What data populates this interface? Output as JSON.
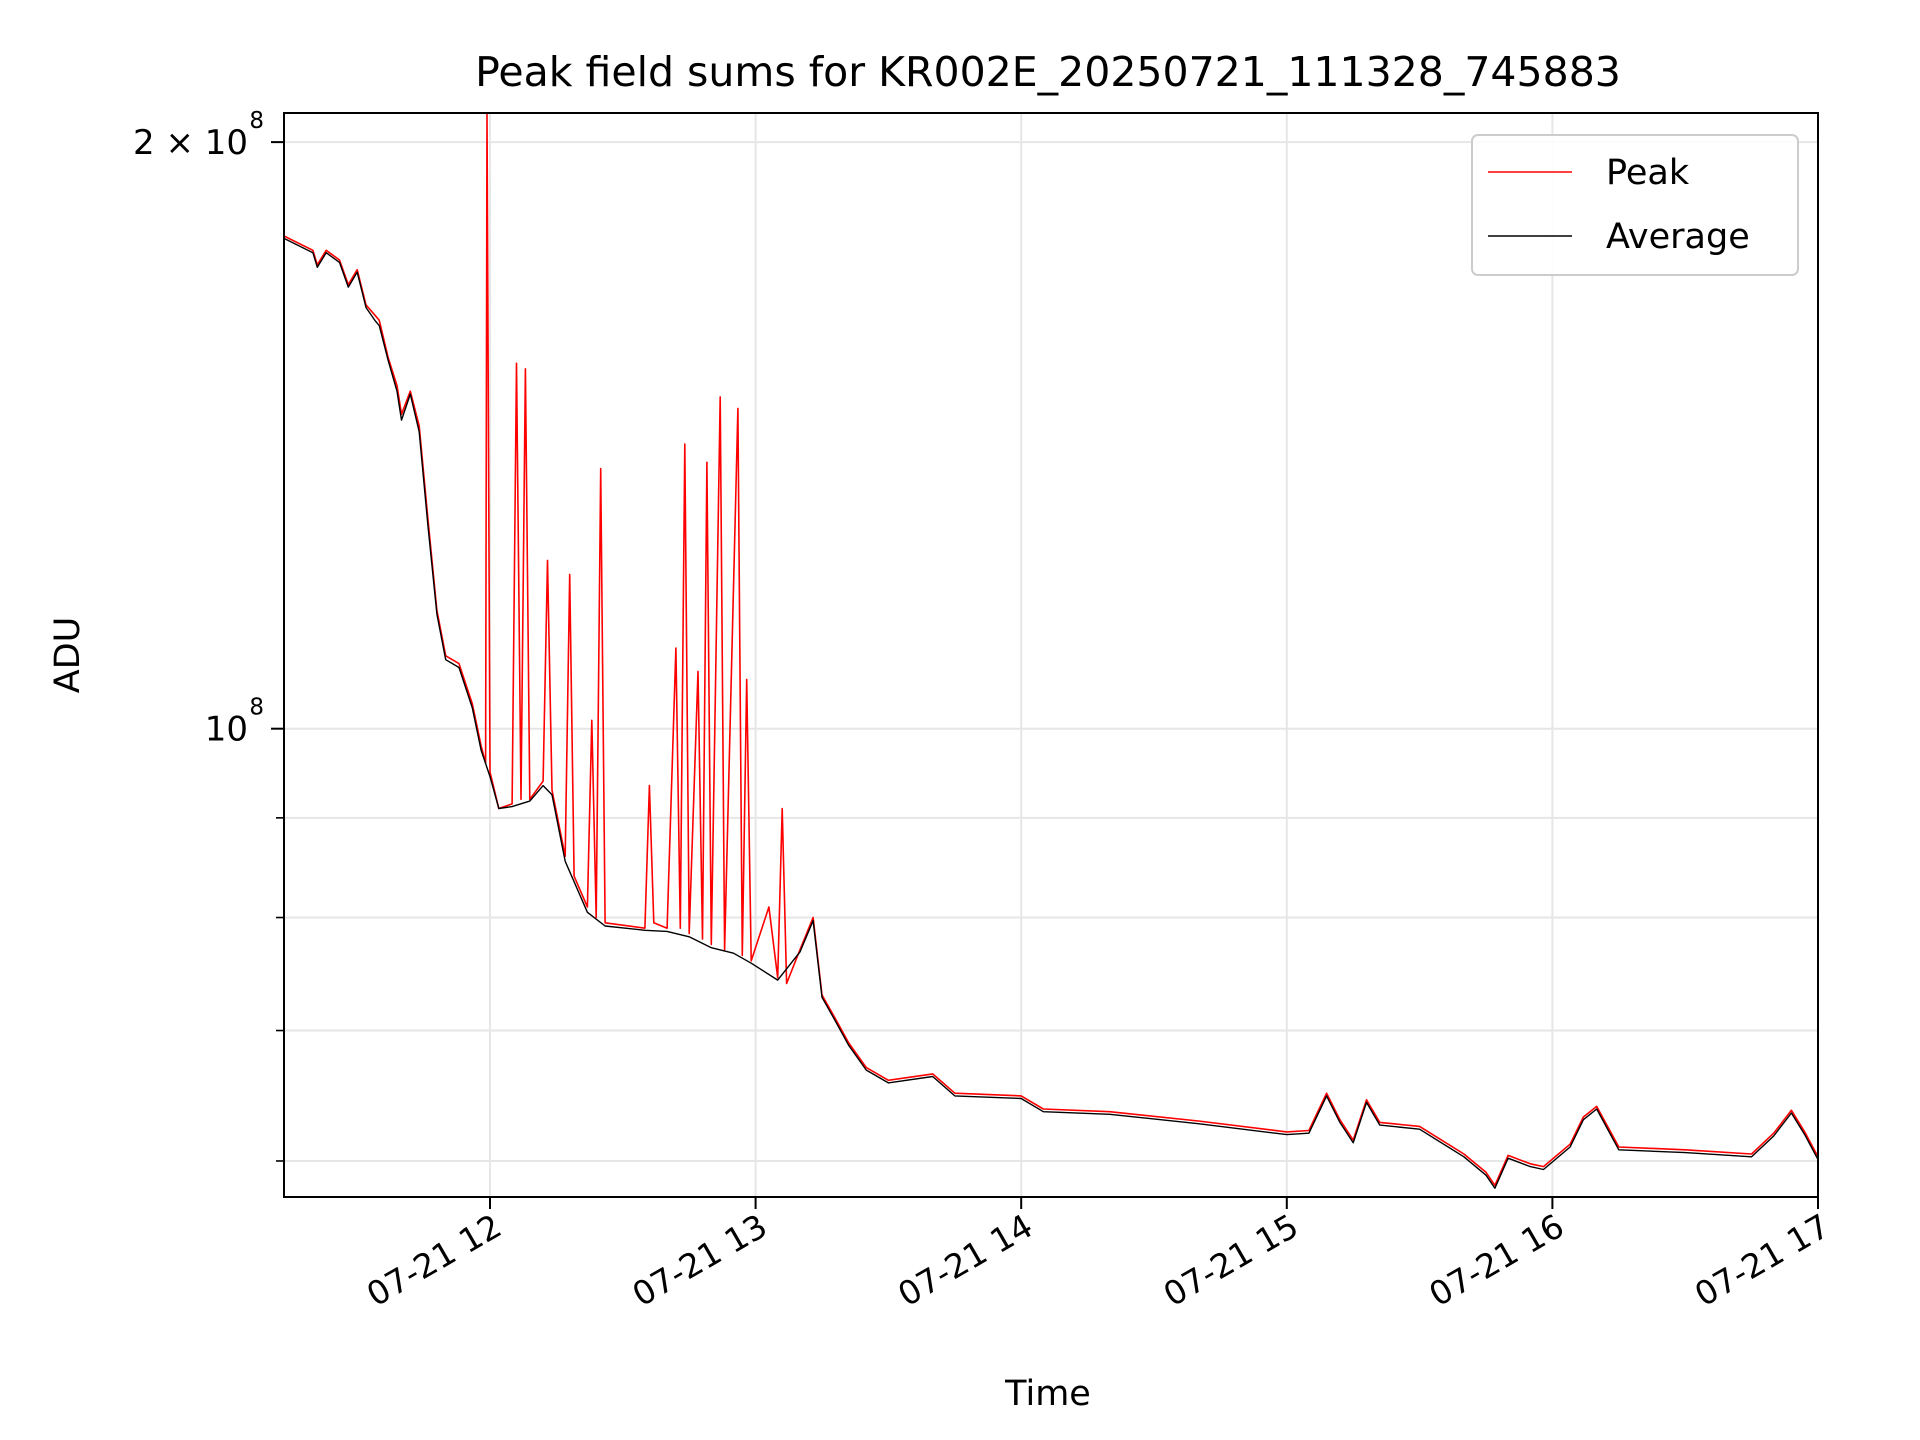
{
  "chart_data": {
    "type": "line",
    "title": "Peak field sums for KR002E_20250721_111328_745883",
    "xlabel": "Time",
    "ylabel": "ADU",
    "x_scale": "time",
    "y_scale": "log",
    "xlim": [
      "2025-07-21 11:13:28",
      "2025-07-21 17:00:00"
    ],
    "ylim": [
      57500000,
      207000000
    ],
    "x_ticks": [
      {
        "value": "2025-07-21 12:00",
        "label": "07-21 12"
      },
      {
        "value": "2025-07-21 13:00",
        "label": "07-21 13"
      },
      {
        "value": "2025-07-21 14:00",
        "label": "07-21 14"
      },
      {
        "value": "2025-07-21 15:00",
        "label": "07-21 15"
      },
      {
        "value": "2025-07-21 16:00",
        "label": "07-21 16"
      },
      {
        "value": "2025-07-21 17:00",
        "label": "07-21 17"
      }
    ],
    "y_major_ticks": [
      {
        "value": 100000000,
        "base": "10",
        "exp": "8"
      },
      {
        "value": 200000000,
        "base": "2 × 10",
        "exp": "8"
      }
    ],
    "y_minor_ticks": [
      60000000,
      70000000,
      80000000,
      90000000
    ],
    "grid": true,
    "legend_position": "top-right",
    "series": [
      {
        "name": "Peak",
        "color": "#ff0000",
        "points": [
          [
            "2025-07-21 11:13:28",
            179000000
          ],
          [
            "2025-07-21 11:20",
            176000000
          ],
          [
            "2025-07-21 11:21",
            173000000
          ],
          [
            "2025-07-21 11:23",
            176000000
          ],
          [
            "2025-07-21 11:26",
            174000000
          ],
          [
            "2025-07-21 11:28",
            169000000
          ],
          [
            "2025-07-21 11:30",
            172000000
          ],
          [
            "2025-07-21 11:32",
            165000000
          ],
          [
            "2025-07-21 11:34",
            163000000
          ],
          [
            "2025-07-21 11:35",
            162000000
          ],
          [
            "2025-07-21 11:37",
            155000000
          ],
          [
            "2025-07-21 11:39",
            150000000
          ],
          [
            "2025-07-21 11:40",
            145000000
          ],
          [
            "2025-07-21 11:42",
            149000000
          ],
          [
            "2025-07-21 11:44",
            143000000
          ],
          [
            "2025-07-21 11:46",
            128000000
          ],
          [
            "2025-07-21 11:48",
            115000000
          ],
          [
            "2025-07-21 11:50",
            109000000
          ],
          [
            "2025-07-21 11:53",
            108000000
          ],
          [
            "2025-07-21 11:56",
            103000000
          ],
          [
            "2025-07-21 11:58",
            98000000
          ],
          [
            "2025-07-21 11:59",
            96000000
          ],
          [
            "2025-07-21 11:59:20",
            207000000
          ],
          [
            "2025-07-21 12:00",
            95000000
          ],
          [
            "2025-07-21 12:02",
            91000000
          ],
          [
            "2025-07-21 12:05",
            91500000
          ],
          [
            "2025-07-21 12:06",
            154000000
          ],
          [
            "2025-07-21 12:07",
            92000000
          ],
          [
            "2025-07-21 12:08",
            153000000
          ],
          [
            "2025-07-21 12:09",
            92000000
          ],
          [
            "2025-07-21 12:12",
            94000000
          ],
          [
            "2025-07-21 12:13",
            122000000
          ],
          [
            "2025-07-21 12:14",
            93000000
          ],
          [
            "2025-07-21 12:17",
            86000000
          ],
          [
            "2025-07-21 12:18",
            120000000
          ],
          [
            "2025-07-21 12:19",
            84000000
          ],
          [
            "2025-07-21 12:22",
            81000000
          ],
          [
            "2025-07-21 12:23",
            101000000
          ],
          [
            "2025-07-21 12:24",
            80000000
          ],
          [
            "2025-07-21 12:25",
            136000000
          ],
          [
            "2025-07-21 12:26",
            79500000
          ],
          [
            "2025-07-21 12:35",
            79000000
          ],
          [
            "2025-07-21 12:36",
            93500000
          ],
          [
            "2025-07-21 12:37",
            79500000
          ],
          [
            "2025-07-21 12:40",
            79000000
          ],
          [
            "2025-07-21 12:42",
            110000000
          ],
          [
            "2025-07-21 12:43",
            79000000
          ],
          [
            "2025-07-21 12:44",
            140000000
          ],
          [
            "2025-07-21 12:45",
            78500000
          ],
          [
            "2025-07-21 12:47",
            107000000
          ],
          [
            "2025-07-21 12:48",
            78000000
          ],
          [
            "2025-07-21 12:49",
            137000000
          ],
          [
            "2025-07-21 12:50",
            77500000
          ],
          [
            "2025-07-21 12:52",
            148000000
          ],
          [
            "2025-07-21 12:53",
            77000000
          ],
          [
            "2025-07-21 12:56",
            146000000
          ],
          [
            "2025-07-21 12:57",
            76500000
          ],
          [
            "2025-07-21 12:58",
            106000000
          ],
          [
            "2025-07-21 12:59",
            76000000
          ],
          [
            "2025-07-21 13:03",
            81000000
          ],
          [
            "2025-07-21 13:05",
            74500000
          ],
          [
            "2025-07-21 13:06",
            91000000
          ],
          [
            "2025-07-21 13:07",
            74000000
          ],
          [
            "2025-07-21 13:10",
            77000000
          ],
          [
            "2025-07-21 13:13",
            80000000
          ],
          [
            "2025-07-21 13:15",
            73000000
          ],
          [
            "2025-07-21 13:18",
            71000000
          ],
          [
            "2025-07-21 13:21",
            69000000
          ],
          [
            "2025-07-21 13:25",
            67000000
          ],
          [
            "2025-07-21 13:30",
            66000000
          ],
          [
            "2025-07-21 13:40",
            66500000
          ],
          [
            "2025-07-21 13:45",
            65000000
          ],
          [
            "2025-07-21 14:00",
            64800000
          ],
          [
            "2025-07-21 14:05",
            63800000
          ],
          [
            "2025-07-21 14:20",
            63600000
          ],
          [
            "2025-07-21 14:40",
            62900000
          ],
          [
            "2025-07-21 15:00",
            62100000
          ],
          [
            "2025-07-21 15:05",
            62200000
          ],
          [
            "2025-07-21 15:09",
            65000000
          ],
          [
            "2025-07-21 15:12",
            63000000
          ],
          [
            "2025-07-21 15:15",
            61500000
          ],
          [
            "2025-07-21 15:18",
            64500000
          ],
          [
            "2025-07-21 15:21",
            62800000
          ],
          [
            "2025-07-21 15:30",
            62500000
          ],
          [
            "2025-07-21 15:40",
            60500000
          ],
          [
            "2025-07-21 15:45",
            59200000
          ],
          [
            "2025-07-21 15:47",
            58300000
          ],
          [
            "2025-07-21 15:50",
            60400000
          ],
          [
            "2025-07-21 15:55",
            59800000
          ],
          [
            "2025-07-21 15:58",
            59600000
          ],
          [
            "2025-07-21 16:04",
            61200000
          ],
          [
            "2025-07-21 16:07",
            63200000
          ],
          [
            "2025-07-21 16:10",
            64000000
          ],
          [
            "2025-07-21 16:15",
            61000000
          ],
          [
            "2025-07-21 16:30",
            60800000
          ],
          [
            "2025-07-21 16:45",
            60500000
          ],
          [
            "2025-07-21 16:50",
            62000000
          ],
          [
            "2025-07-21 16:54",
            63700000
          ],
          [
            "2025-07-21 16:57",
            62100000
          ],
          [
            "2025-07-21 17:00",
            60300000
          ]
        ]
      },
      {
        "name": "Average",
        "color": "#000000",
        "points": [
          [
            "2025-07-21 11:13:28",
            178500000
          ],
          [
            "2025-07-21 11:20",
            175500000
          ],
          [
            "2025-07-21 11:21",
            172500000
          ],
          [
            "2025-07-21 11:23",
            175500000
          ],
          [
            "2025-07-21 11:26",
            173500000
          ],
          [
            "2025-07-21 11:28",
            168500000
          ],
          [
            "2025-07-21 11:30",
            171500000
          ],
          [
            "2025-07-21 11:32",
            164500000
          ],
          [
            "2025-07-21 11:34",
            162000000
          ],
          [
            "2025-07-21 11:35",
            161000000
          ],
          [
            "2025-07-21 11:37",
            154500000
          ],
          [
            "2025-07-21 11:39",
            149000000
          ],
          [
            "2025-07-21 11:40",
            144000000
          ],
          [
            "2025-07-21 11:42",
            148500000
          ],
          [
            "2025-07-21 11:44",
            142000000
          ],
          [
            "2025-07-21 11:46",
            127000000
          ],
          [
            "2025-07-21 11:48",
            114500000
          ],
          [
            "2025-07-21 11:50",
            108500000
          ],
          [
            "2025-07-21 11:53",
            107500000
          ],
          [
            "2025-07-21 11:56",
            102500000
          ],
          [
            "2025-07-21 11:58",
            97500000
          ],
          [
            "2025-07-21 12:00",
            94500000
          ],
          [
            "2025-07-21 12:02",
            91000000
          ],
          [
            "2025-07-21 12:05",
            91200000
          ],
          [
            "2025-07-21 12:09",
            91800000
          ],
          [
            "2025-07-21 12:12",
            93500000
          ],
          [
            "2025-07-21 12:14",
            92500000
          ],
          [
            "2025-07-21 12:17",
            85500000
          ],
          [
            "2025-07-21 12:22",
            80500000
          ],
          [
            "2025-07-21 12:26",
            79200000
          ],
          [
            "2025-07-21 12:35",
            78800000
          ],
          [
            "2025-07-21 12:40",
            78700000
          ],
          [
            "2025-07-21 12:45",
            78200000
          ],
          [
            "2025-07-21 12:50",
            77200000
          ],
          [
            "2025-07-21 12:55",
            76700000
          ],
          [
            "2025-07-21 12:59",
            75800000
          ],
          [
            "2025-07-21 13:05",
            74300000
          ],
          [
            "2025-07-21 13:10",
            76800000
          ],
          [
            "2025-07-21 13:13",
            79700000
          ],
          [
            "2025-07-21 13:15",
            72800000
          ],
          [
            "2025-07-21 13:18",
            70800000
          ],
          [
            "2025-07-21 13:21",
            68800000
          ],
          [
            "2025-07-21 13:25",
            66800000
          ],
          [
            "2025-07-21 13:30",
            65800000
          ],
          [
            "2025-07-21 13:40",
            66300000
          ],
          [
            "2025-07-21 13:45",
            64800000
          ],
          [
            "2025-07-21 14:00",
            64600000
          ],
          [
            "2025-07-21 14:05",
            63600000
          ],
          [
            "2025-07-21 14:20",
            63400000
          ],
          [
            "2025-07-21 14:40",
            62700000
          ],
          [
            "2025-07-21 15:00",
            61900000
          ],
          [
            "2025-07-21 15:05",
            62000000
          ],
          [
            "2025-07-21 15:09",
            64800000
          ],
          [
            "2025-07-21 15:12",
            62800000
          ],
          [
            "2025-07-21 15:15",
            61300000
          ],
          [
            "2025-07-21 15:18",
            64300000
          ],
          [
            "2025-07-21 15:21",
            62600000
          ],
          [
            "2025-07-21 15:30",
            62300000
          ],
          [
            "2025-07-21 15:40",
            60300000
          ],
          [
            "2025-07-21 15:45",
            59000000
          ],
          [
            "2025-07-21 15:47",
            58100000
          ],
          [
            "2025-07-21 15:50",
            60200000
          ],
          [
            "2025-07-21 15:55",
            59600000
          ],
          [
            "2025-07-21 15:58",
            59400000
          ],
          [
            "2025-07-21 16:04",
            61000000
          ],
          [
            "2025-07-21 16:07",
            63000000
          ],
          [
            "2025-07-21 16:10",
            63800000
          ],
          [
            "2025-07-21 16:15",
            60800000
          ],
          [
            "2025-07-21 16:30",
            60600000
          ],
          [
            "2025-07-21 16:45",
            60300000
          ],
          [
            "2025-07-21 16:50",
            61800000
          ],
          [
            "2025-07-21 16:54",
            63500000
          ],
          [
            "2025-07-21 16:57",
            61900000
          ],
          [
            "2025-07-21 17:00",
            60100000
          ]
        ]
      }
    ]
  }
}
